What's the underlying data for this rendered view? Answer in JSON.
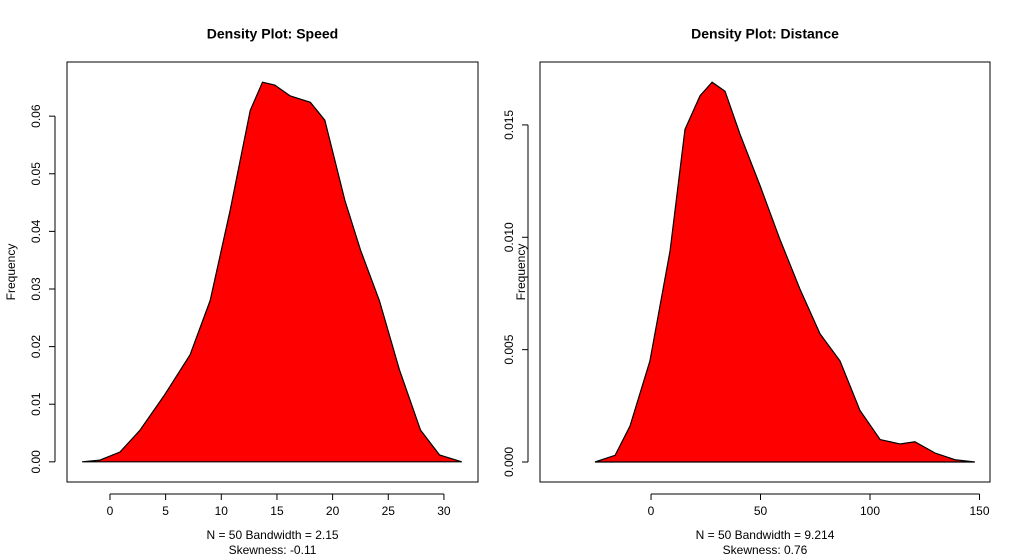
{
  "chart_data": [
    {
      "type": "area",
      "title": "Density Plot: Speed",
      "ylabel": "Frequency",
      "xlabel": "N = 50   Bandwidth = 2.15",
      "annotation": "Skewness: -0.11",
      "color": "#ff0000",
      "x": [
        -2.5,
        -0.9,
        0.9,
        2.7,
        4.9,
        7.2,
        9.0,
        10.8,
        12.6,
        13.7,
        14.8,
        16.2,
        18.0,
        19.3,
        21.1,
        22.5,
        24.2,
        26.0,
        27.9,
        29.6,
        31.6
      ],
      "values": [
        0,
        0.0003,
        0.0017,
        0.0055,
        0.0116,
        0.0186,
        0.028,
        0.0437,
        0.061,
        0.0659,
        0.0654,
        0.0635,
        0.0624,
        0.0593,
        0.0454,
        0.0368,
        0.028,
        0.016,
        0.0055,
        0.0012,
        0
      ],
      "xlim": [
        -3.86,
        33.06
      ],
      "ylim": [
        -0.0035,
        0.0694
      ],
      "xticks": [
        0,
        5,
        10,
        15,
        20,
        25,
        30
      ],
      "yticks": [
        {
          "value": 0,
          "label": "0.00"
        },
        0.01,
        0.02,
        0.03,
        0.04,
        0.05,
        0.06
      ]
    },
    {
      "type": "area",
      "title": "Density Plot: Distance",
      "ylabel": "Frequency",
      "xlabel": "N = 50   Bandwidth = 9.214",
      "annotation": "Skewness: 0.76",
      "color": "#ff0000",
      "x": [
        -25.6,
        -16.4,
        -9.6,
        -0.5,
        8.7,
        15.5,
        22.4,
        27.9,
        33.8,
        40.6,
        49.8,
        58.9,
        68,
        77.2,
        86.3,
        95.4,
        104.6,
        113.7,
        120.5,
        129.7,
        138.8,
        147.9
      ],
      "values": [
        0,
        0.0003,
        0.0016,
        0.0045,
        0.0094,
        0.0148,
        0.0163,
        0.0169,
        0.0165,
        0.0146,
        0.0123,
        0.0099,
        0.0077,
        0.0057,
        0.0045,
        0.0023,
        0.001,
        0.0008,
        0.0009,
        0.0004,
        0.0001,
        0
      ],
      "xlim": [
        -50.7,
        154.8
      ],
      "ylim": [
        -0.00089,
        0.0178
      ],
      "xticks": [
        0,
        50,
        100,
        150
      ],
      "yticks": [
        {
          "value": 0,
          "label": "0.000"
        },
        0.005,
        {
          "value": 0.01,
          "label": "0.010"
        },
        0.015
      ]
    }
  ]
}
